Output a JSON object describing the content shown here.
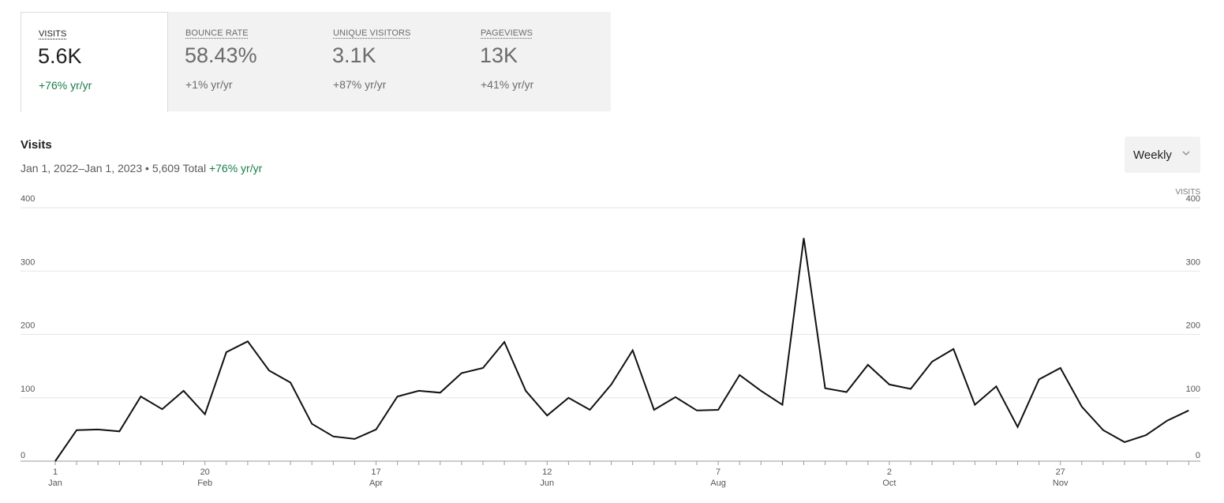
{
  "metrics": [
    {
      "label": "VISITS",
      "value": "5.6K",
      "change": "+76% yr/yr",
      "active": true
    },
    {
      "label": "BOUNCE RATE",
      "value": "58.43%",
      "change": "+1% yr/yr",
      "active": false
    },
    {
      "label": "UNIQUE VISITORS",
      "value": "3.1K",
      "change": "+87% yr/yr",
      "active": false
    },
    {
      "label": "PAGEVIEWS",
      "value": "13K",
      "change": "+41% yr/yr",
      "active": false
    }
  ],
  "chart_header": {
    "title": "Visits",
    "range": "Jan 1, 2022–Jan 1, 2023",
    "separator": " • ",
    "total": "5,609 Total",
    "change": "+76% yr/yr"
  },
  "period_select": {
    "value": "Weekly",
    "icon": "chevron-down-icon"
  },
  "colors": {
    "accent_green": "#1a7c49",
    "line": "#111111",
    "grid": "#e6e6e6",
    "tab_bg": "#f2f2f2"
  },
  "chart_data": {
    "type": "line",
    "title": "Visits",
    "ylabel_right": "VISITS",
    "ylim": [
      0,
      400
    ],
    "yticks": [
      0,
      100,
      200,
      300,
      400
    ],
    "xtick_labels": [
      {
        "day": "1",
        "month": "Jan",
        "index": 0
      },
      {
        "day": "20",
        "month": "Feb",
        "index": 7
      },
      {
        "day": "17",
        "month": "Apr",
        "index": 15
      },
      {
        "day": "12",
        "month": "Jun",
        "index": 23
      },
      {
        "day": "7",
        "month": "Aug",
        "index": 31
      },
      {
        "day": "2",
        "month": "Oct",
        "index": 39
      },
      {
        "day": "27",
        "month": "Nov",
        "index": 47
      }
    ],
    "grid": true,
    "series": [
      {
        "values": [
          0,
          49,
          50,
          47,
          102,
          82,
          111,
          74,
          172,
          189,
          143,
          124,
          59,
          39,
          35,
          50,
          102,
          111,
          108,
          139,
          147,
          188,
          111,
          72,
          100,
          81,
          121,
          175,
          81,
          101,
          80,
          81,
          136,
          111,
          89,
          352,
          115,
          109,
          152,
          121,
          114,
          157,
          177,
          89,
          118,
          54,
          129,
          147,
          86,
          49,
          30,
          41,
          64,
          80
        ]
      }
    ]
  }
}
